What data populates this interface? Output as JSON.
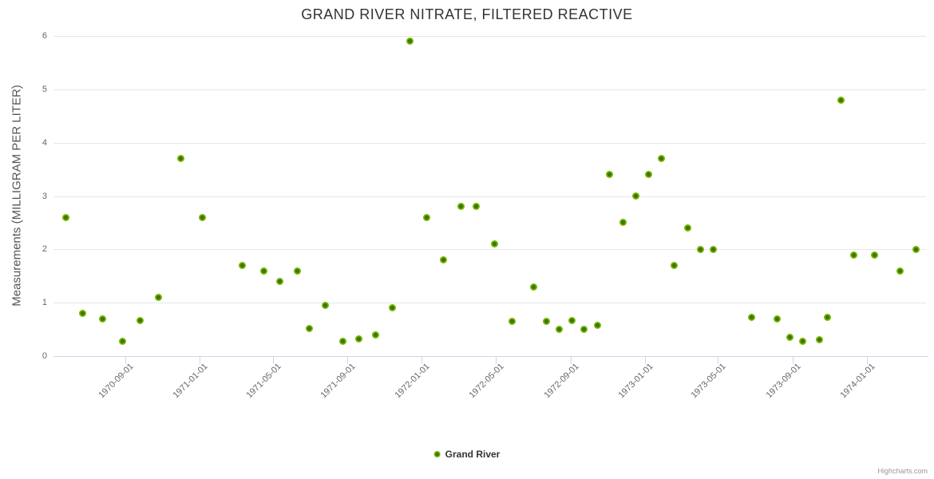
{
  "header": {
    "title": "GRAND RIVER NITRATE, FILTERED REACTIVE"
  },
  "credits": {
    "label": "Highcharts.com"
  },
  "legend": {
    "items": [
      {
        "label": "Grand River",
        "color": "#76b400"
      }
    ]
  },
  "colors": {
    "series_green": "#76b400",
    "series_green_dark": "#3a7500",
    "gridline": "#e6e6e6",
    "axis_line": "#ccd6eb",
    "tick_label": "#666666",
    "title_text": "#333333",
    "axis_title_text": "#555555",
    "credits_text": "#999999"
  },
  "chart_data": {
    "type": "scatter",
    "title": "GRAND RIVER NITRATE, FILTERED REACTIVE",
    "xlabel": "",
    "ylabel": "Measurements (MILLIGRAM PER LITER)",
    "ylim": [
      0,
      6
    ],
    "yticks": [
      0,
      1,
      2,
      3,
      4,
      5,
      6
    ],
    "xlim": [
      "1970-05-06",
      "1974-04-08"
    ],
    "xticks": [
      "1970-09-01",
      "1971-01-01",
      "1971-05-01",
      "1971-09-01",
      "1972-01-01",
      "1972-05-01",
      "1972-09-01",
      "1973-01-01",
      "1973-05-01",
      "1973-09-01",
      "1974-01-01"
    ],
    "grid": true,
    "legend_position": "bottom-center",
    "series": [
      {
        "name": "Grand River",
        "color": "#76b400",
        "data": [
          [
            "1970-05-26",
            2.6
          ],
          [
            "1970-06-23",
            0.8
          ],
          [
            "1970-07-26",
            0.7
          ],
          [
            "1970-08-27",
            0.28
          ],
          [
            "1970-09-25",
            0.67
          ],
          [
            "1970-10-26",
            1.1
          ],
          [
            "1970-12-01",
            3.7
          ],
          [
            "1971-01-06",
            2.6
          ],
          [
            "1971-03-12",
            1.7
          ],
          [
            "1971-04-16",
            1.6
          ],
          [
            "1971-05-13",
            1.4
          ],
          [
            "1971-06-10",
            1.6
          ],
          [
            "1971-06-30",
            0.52
          ],
          [
            "1971-07-27",
            0.95
          ],
          [
            "1971-08-24",
            0.28
          ],
          [
            "1971-09-20",
            0.32
          ],
          [
            "1971-10-17",
            0.4
          ],
          [
            "1971-11-14",
            0.9
          ],
          [
            "1971-12-13",
            5.9
          ],
          [
            "1972-01-09",
            2.6
          ],
          [
            "1972-02-05",
            1.8
          ],
          [
            "1972-03-05",
            2.8
          ],
          [
            "1972-03-30",
            2.8
          ],
          [
            "1972-04-29",
            2.1
          ],
          [
            "1972-05-28",
            0.65
          ],
          [
            "1972-07-02",
            1.3
          ],
          [
            "1972-07-23",
            0.65
          ],
          [
            "1972-08-13",
            0.5
          ],
          [
            "1972-09-03",
            0.67
          ],
          [
            "1972-09-23",
            0.5
          ],
          [
            "1972-10-15",
            0.57
          ],
          [
            "1972-11-04",
            3.4
          ],
          [
            "1972-11-26",
            2.5
          ],
          [
            "1972-12-17",
            3.0
          ],
          [
            "1973-01-07",
            3.4
          ],
          [
            "1973-01-28",
            3.7
          ],
          [
            "1973-02-19",
            1.7
          ],
          [
            "1973-03-13",
            2.4
          ],
          [
            "1973-04-02",
            2.0
          ],
          [
            "1973-04-23",
            2.0
          ],
          [
            "1973-06-25",
            0.73
          ],
          [
            "1973-08-06",
            0.7
          ],
          [
            "1973-08-27",
            0.35
          ],
          [
            "1973-09-17",
            0.28
          ],
          [
            "1973-10-15",
            0.3
          ],
          [
            "1973-10-28",
            0.73
          ],
          [
            "1973-11-19",
            4.8
          ],
          [
            "1973-12-10",
            1.9
          ],
          [
            "1974-01-13",
            1.9
          ],
          [
            "1974-02-24",
            1.6
          ],
          [
            "1974-03-23",
            2.0
          ]
        ]
      }
    ]
  }
}
